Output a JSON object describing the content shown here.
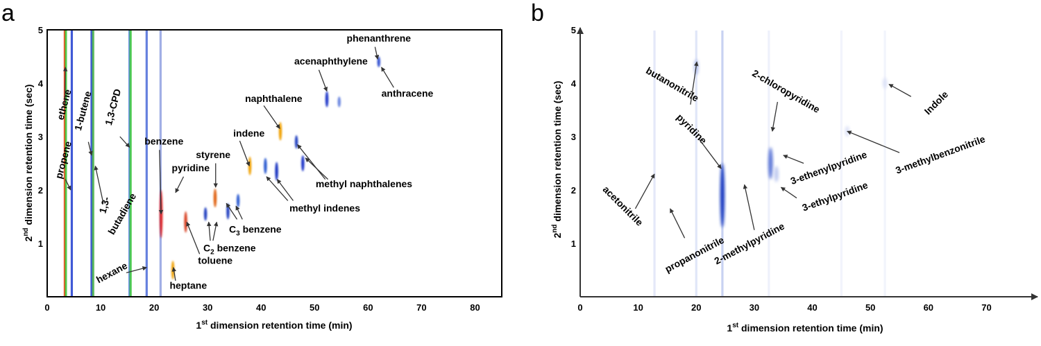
{
  "panels": [
    {
      "letter": "a",
      "xlabel_pre": "1",
      "xlabel_sup": "st",
      "xlabel_post": " dimension retention time (min)",
      "ylabel_pre": "2",
      "ylabel_sup": "nd",
      "ylabel_post": " dimension retention time (sec)"
    },
    {
      "letter": "b",
      "xlabel_pre": "1",
      "xlabel_sup": "st",
      "xlabel_post": " dimension retention time (min)",
      "ylabel_pre": "2",
      "ylabel_sup": "nd",
      "ylabel_post": " dimension retention time (sec)"
    }
  ],
  "chart_data": [
    {
      "type": "heatmap",
      "panel": "a",
      "xlim": [
        0,
        85
      ],
      "ylim": [
        0,
        5
      ],
      "xticks": [
        0,
        10,
        20,
        30,
        40,
        50,
        60,
        70,
        80
      ],
      "yticks": [
        1,
        2,
        3,
        4,
        5
      ],
      "colorscale": [
        "#0a1fb5",
        "#2f8f2f",
        "#ffe000",
        "#ff2000",
        "#b00000"
      ],
      "streaks": [
        {
          "x": 3.3,
          "color": "#ff2a00"
        },
        {
          "x": 3.5,
          "color": "#3cc83c"
        },
        {
          "x": 4.6,
          "color": "#1e3ccf"
        },
        {
          "x": 8.3,
          "color": "#1e3ccf"
        },
        {
          "x": 8.6,
          "color": "#44b044"
        },
        {
          "x": 15.4,
          "color": "#4a7ad8"
        },
        {
          "x": 15.6,
          "color": "#3cc83c"
        },
        {
          "x": 18.6,
          "color": "#4a6ad8"
        },
        {
          "x": 21.2,
          "color": "#8fa0e0"
        }
      ],
      "spots": [
        {
          "x": 21.3,
          "y": 1.55,
          "h": 0.9,
          "color": "#e02020"
        },
        {
          "x": 23.5,
          "y": 0.5,
          "h": 0.35,
          "color": "#f0a000"
        },
        {
          "x": 25.9,
          "y": 1.4,
          "h": 0.4,
          "color": "#d84020"
        },
        {
          "x": 29.6,
          "y": 1.55,
          "h": 0.25,
          "color": "#2040c0"
        },
        {
          "x": 31.4,
          "y": 1.85,
          "h": 0.35,
          "color": "#e06010"
        },
        {
          "x": 33.8,
          "y": 1.6,
          "h": 0.3,
          "color": "#2040c0"
        },
        {
          "x": 35.7,
          "y": 1.8,
          "h": 0.25,
          "color": "#2a5ad0"
        },
        {
          "x": 37.9,
          "y": 2.45,
          "h": 0.35,
          "color": "#f0a000"
        },
        {
          "x": 40.8,
          "y": 2.45,
          "h": 0.3,
          "color": "#2a5ad0"
        },
        {
          "x": 42.9,
          "y": 2.35,
          "h": 0.35,
          "color": "#1830c0"
        },
        {
          "x": 43.6,
          "y": 3.1,
          "h": 0.35,
          "color": "#f0a000"
        },
        {
          "x": 46.6,
          "y": 2.9,
          "h": 0.25,
          "color": "#2040c0"
        },
        {
          "x": 47.8,
          "y": 2.5,
          "h": 0.3,
          "color": "#1a34c8"
        },
        {
          "x": 52.3,
          "y": 3.7,
          "h": 0.3,
          "color": "#1a34c8"
        },
        {
          "x": 54.6,
          "y": 3.65,
          "h": 0.2,
          "color": "#6a86e0"
        },
        {
          "x": 62.0,
          "y": 4.4,
          "h": 0.2,
          "color": "#3050d0"
        }
      ],
      "annotations": [
        {
          "text": "ethene",
          "lx": 3.0,
          "ly": 3.3,
          "angle": -75,
          "ax1": 3.3,
          "ay1": 3.6,
          "ax2": 3.4,
          "ay2": 4.3
        },
        {
          "text": "propene",
          "lx": 2.7,
          "ly": 2.2,
          "angle": -75,
          "ax1": 3.4,
          "ay1": 2.2,
          "ax2": 4.4,
          "ay2": 2.0
        },
        {
          "text": "1-butene",
          "lx": 6.3,
          "ly": 3.1,
          "angle": -75,
          "ax1": 7.7,
          "ay1": 2.9,
          "ax2": 8.3,
          "ay2": 2.65
        },
        {
          "text": "1,3-CPD",
          "lx": 12.0,
          "ly": 3.2,
          "angle": -75,
          "ax1": 13.6,
          "ay1": 3.0,
          "ax2": 15.4,
          "ay2": 2.8
        },
        {
          "text": "1,3-",
          "lx": 10.9,
          "ly": 1.55,
          "angle": -75,
          "ax1": 10.5,
          "ay1": 1.75,
          "ax2": 9.0,
          "ay2": 2.45
        },
        {
          "text": "butadiene",
          "lx": 12.4,
          "ly": 1.15,
          "angle": -60
        },
        {
          "text": "benzene",
          "lx": 18.2,
          "ly": 2.85,
          "angle": 0,
          "ax1": 21.0,
          "ay1": 2.75,
          "ax2": 21.3,
          "ay2": 1.55
        },
        {
          "text": "pyridine",
          "lx": 23.3,
          "ly": 2.35,
          "angle": 0,
          "ax1": 25.5,
          "ay1": 2.25,
          "ax2": 24.0,
          "ay2": 1.95
        },
        {
          "text": "styrene",
          "lx": 27.8,
          "ly": 2.6,
          "angle": 0,
          "ax1": 31.5,
          "ay1": 2.5,
          "ax2": 31.5,
          "ay2": 2.05
        },
        {
          "text": "indene",
          "lx": 34.8,
          "ly": 3.0,
          "angle": 0,
          "ax1": 36.0,
          "ay1": 2.92,
          "ax2": 37.8,
          "ay2": 2.45
        },
        {
          "text": "naphthalene",
          "lx": 37.0,
          "ly": 3.65,
          "angle": 0,
          "ax1": 40.5,
          "ay1": 3.58,
          "ax2": 43.5,
          "ay2": 3.15
        },
        {
          "text": "acenaphthylene",
          "lx": 46.2,
          "ly": 4.35,
          "angle": 0,
          "ax1": 50.8,
          "ay1": 4.25,
          "ax2": 52.3,
          "ay2": 3.85
        },
        {
          "text": "phenanthrene",
          "lx": 56.0,
          "ly": 4.78,
          "angle": 0,
          "ax1": 61.3,
          "ay1": 4.68,
          "ax2": 61.8,
          "ay2": 4.45
        },
        {
          "text": "anthracene",
          "lx": 62.5,
          "ly": 3.75,
          "angle": 0,
          "ax1": 64.8,
          "ay1": 3.92,
          "ax2": 62.5,
          "ay2": 4.3
        },
        {
          "text": "methyl naphthalenes",
          "lx": 50.2,
          "ly": 2.05,
          "angle": 0,
          "ax1": 52.0,
          "ay1": 2.2,
          "ax2": 46.8,
          "ay2": 2.85,
          "ax3": 52.5,
          "ay3": 2.2,
          "ax4": 48.3,
          "ay4": 2.6
        },
        {
          "text": "methyl indenes",
          "lx": 45.3,
          "ly": 1.6,
          "angle": 0,
          "ax1": 45.0,
          "ay1": 1.8,
          "ax2": 41.0,
          "ay2": 2.25,
          "ax3": 46.0,
          "ay3": 1.8,
          "ax4": 43.0,
          "ay4": 2.2
        },
        {
          "text": "C",
          "lx": 34.0,
          "ly": 1.2,
          "angle": 0,
          "sub": "3",
          "post": " benzene",
          "ax1": 35.5,
          "ay1": 1.45,
          "ax2": 33.5,
          "ay2": 1.75,
          "ax3": 36.5,
          "ay3": 1.45,
          "ax4": 35.3,
          "ay4": 1.7
        },
        {
          "text": "C",
          "lx": 29.2,
          "ly": 0.85,
          "angle": 0,
          "sub": "2",
          "post": " benzene",
          "ax1": 30.5,
          "ay1": 1.05,
          "ax2": 30.2,
          "ay2": 1.4,
          "ax3": 31.0,
          "ay3": 1.05,
          "ax4": 31.7,
          "ay4": 1.4
        },
        {
          "text": "toluene",
          "lx": 28.2,
          "ly": 0.62,
          "angle": 0,
          "ax1": 28.5,
          "ay1": 0.8,
          "ax2": 26.1,
          "ay2": 1.4
        },
        {
          "text": "hexane",
          "lx": 9.6,
          "ly": 0.25,
          "angle": -28,
          "ax1": 14.8,
          "ay1": 0.45,
          "ax2": 18.6,
          "ay2": 0.55
        },
        {
          "text": "heptane",
          "lx": 22.9,
          "ly": 0.15,
          "angle": 0,
          "ax1": 24.0,
          "ay1": 0.3,
          "ax2": 23.6,
          "ay2": 0.55
        }
      ]
    },
    {
      "type": "heatmap",
      "panel": "b",
      "xlim": [
        0,
        77
      ],
      "ylim": [
        0,
        5
      ],
      "xticks": [
        0,
        10,
        20,
        30,
        40,
        50,
        60,
        70
      ],
      "yticks": [
        1,
        2,
        3,
        4,
        5
      ],
      "colorscale": [
        "#ffffff",
        "#c8d0f0",
        "#1030b0"
      ],
      "streaks": [
        {
          "x": 12.8,
          "color": "#e4e8f8"
        },
        {
          "x": 20.0,
          "color": "#e0e6f8"
        },
        {
          "x": 24.5,
          "color": "#c8d2f2"
        },
        {
          "x": 32.5,
          "color": "#eef1fb"
        },
        {
          "x": 45.0,
          "color": "#f2f4fc"
        },
        {
          "x": 52.5,
          "color": "#f2f4fc"
        }
      ],
      "spots": [
        {
          "x": 24.5,
          "y": 1.9,
          "h": 1.2,
          "color": "#1838c0"
        },
        {
          "x": 20.0,
          "y": 4.3,
          "h": 0.3,
          "color": "#b6c2ec"
        },
        {
          "x": 32.8,
          "y": 2.5,
          "h": 0.6,
          "color": "#5a74d6"
        },
        {
          "x": 33.8,
          "y": 2.3,
          "h": 0.3,
          "color": "#c0caf0"
        },
        {
          "x": 46.0,
          "y": 3.1,
          "h": 0.2,
          "color": "#dde2f7"
        },
        {
          "x": 52.5,
          "y": 4.0,
          "h": 0.2,
          "color": "#dde2f7"
        }
      ],
      "annotations": [
        {
          "text": "acetonitrile",
          "lx": 3.8,
          "ly": 2.0,
          "angle": 45,
          "ax1": 9.5,
          "ay1": 1.65,
          "ax2": 12.8,
          "ay2": 2.3
        },
        {
          "text": "propanonitrile",
          "lx": 15.0,
          "ly": 0.45,
          "angle": -28,
          "ax1": 18.0,
          "ay1": 1.1,
          "ax2": 15.5,
          "ay2": 1.65
        },
        {
          "text": "2-methylpyridine",
          "lx": 23.5,
          "ly": 0.6,
          "angle": -28,
          "ax1": 30.0,
          "ay1": 1.25,
          "ax2": 28.3,
          "ay2": 2.1
        },
        {
          "text": "pyridine",
          "lx": 16.5,
          "ly": 3.35,
          "angle": 45,
          "ax1": 20.5,
          "ay1": 2.95,
          "ax2": 24.3,
          "ay2": 2.4
        },
        {
          "text": "butanonitrile",
          "lx": 11.2,
          "ly": 4.2,
          "angle": 30,
          "ax1": 19.0,
          "ay1": 3.6,
          "ax2": 20.1,
          "ay2": 4.4
        },
        {
          "text": "2-chloropyridine",
          "lx": 29.5,
          "ly": 4.15,
          "angle": 30,
          "ax1": 34.0,
          "ay1": 3.65,
          "ax2": 33.1,
          "ay2": 3.1
        },
        {
          "text": "3-ethenylpyridine",
          "lx": 36.5,
          "ly": 2.1,
          "angle": -20,
          "ax1": 38.5,
          "ay1": 2.5,
          "ax2": 35.0,
          "ay2": 2.65
        },
        {
          "text": "3-ethylpyridine",
          "lx": 38.5,
          "ly": 1.6,
          "angle": -20,
          "ax1": 37.3,
          "ay1": 1.85,
          "ax2": 34.6,
          "ay2": 2.05
        },
        {
          "text": "3-methylbenzonitrile",
          "lx": 54.6,
          "ly": 2.3,
          "angle": -20,
          "ax1": 55.0,
          "ay1": 2.7,
          "ax2": 46.0,
          "ay2": 3.1
        },
        {
          "text": "Indole",
          "lx": 60.0,
          "ly": 3.4,
          "angle": -45,
          "ax1": 57.0,
          "ay1": 3.75,
          "ax2": 53.2,
          "ay2": 3.98
        }
      ]
    }
  ]
}
